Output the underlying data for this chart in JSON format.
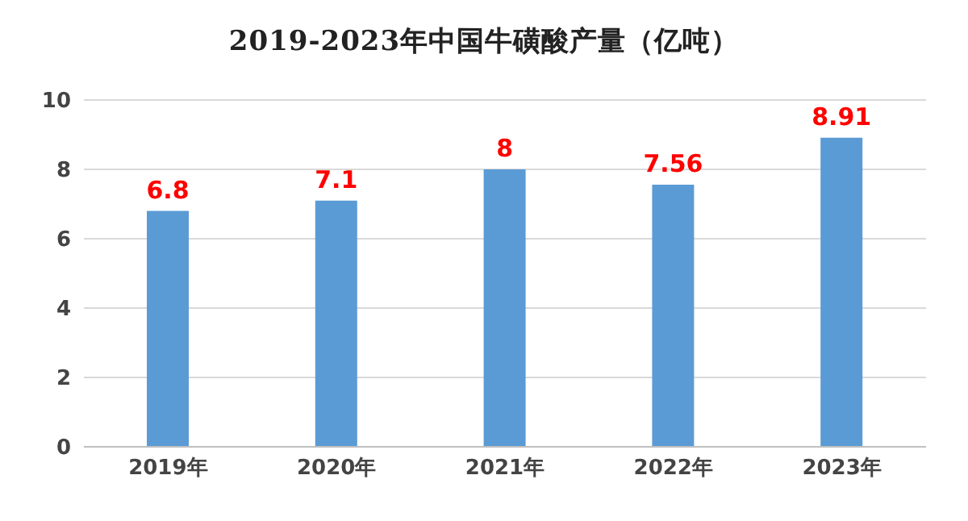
{
  "chart_data": {
    "type": "bar",
    "title": "2019-2023年中国牛磺酸产量（亿吨）",
    "categories": [
      "2019年",
      "2020年",
      "2021年",
      "2022年",
      "2023年"
    ],
    "values": [
      6.8,
      7.1,
      8,
      7.56,
      8.91
    ],
    "color": "#5b9bd5",
    "ylim": [
      0,
      10
    ],
    "yticks": [
      0,
      2,
      4,
      6,
      8,
      10
    ],
    "grid": "y",
    "data_labels": true
  }
}
